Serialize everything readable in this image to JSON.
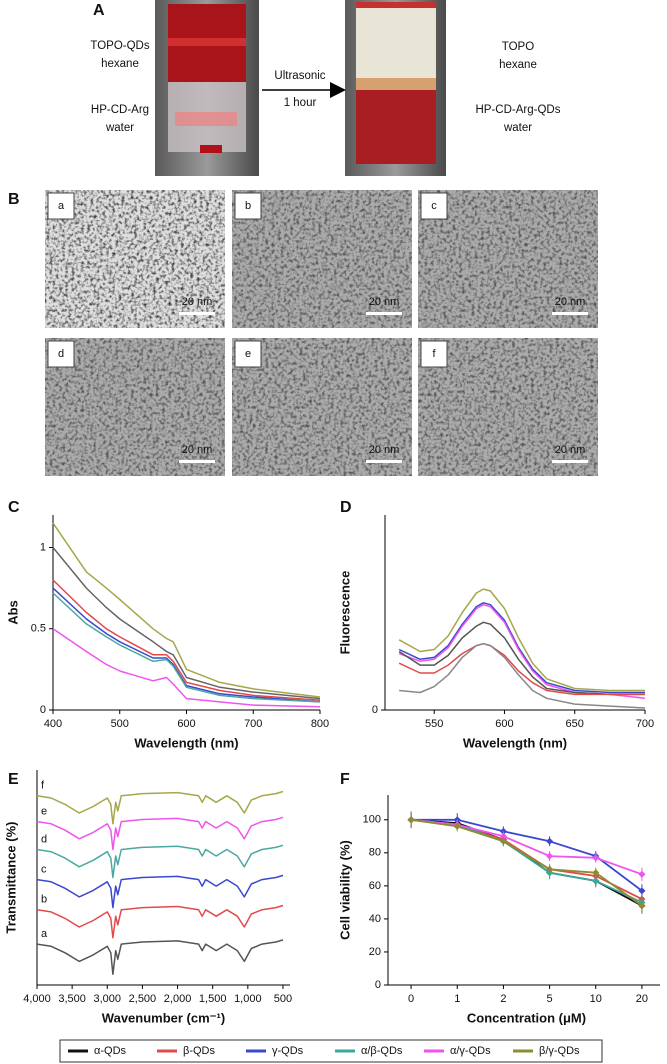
{
  "panel_a": {
    "label": "A",
    "left_labels": [
      [
        "TOPO-QDs",
        "hexane"
      ],
      [
        "HP-CD-Arg",
        "water"
      ]
    ],
    "arrow_labels": [
      "Ultrasonic",
      "1 hour"
    ],
    "right_labels": [
      [
        "TOPO",
        "hexane"
      ],
      [
        "HP-CD-Arg-QDs",
        "water"
      ]
    ]
  },
  "panel_b": {
    "label": "B",
    "images": [
      {
        "label": "a",
        "scale": "20 nm"
      },
      {
        "label": "b",
        "scale": "20 nm"
      },
      {
        "label": "c",
        "scale": "20 nm"
      },
      {
        "label": "d",
        "scale": "20 nm"
      },
      {
        "label": "e",
        "scale": "20 nm"
      },
      {
        "label": "f",
        "scale": "20 nm"
      }
    ]
  },
  "chart_data": [
    {
      "type": "line",
      "panel": "C",
      "xlabel": "Wavelength (nm)",
      "ylabel": "Abs",
      "x": [
        400,
        450,
        480,
        500,
        550,
        570,
        580,
        600,
        650,
        700,
        800
      ],
      "xlim": [
        400,
        800
      ],
      "xticks": [
        400,
        500,
        600,
        700,
        800
      ],
      "ylim": [
        0,
        1.2
      ],
      "yticks": [
        0,
        0.5,
        1
      ],
      "series": [
        {
          "color": "#a6a64a",
          "values": [
            1.15,
            0.85,
            0.75,
            0.68,
            0.5,
            0.44,
            0.42,
            0.25,
            0.17,
            0.13,
            0.08
          ]
        },
        {
          "color": "#666666",
          "values": [
            1.0,
            0.75,
            0.63,
            0.56,
            0.42,
            0.36,
            0.34,
            0.2,
            0.14,
            0.11,
            0.07
          ]
        },
        {
          "color": "#e24a4a",
          "values": [
            0.8,
            0.6,
            0.5,
            0.45,
            0.34,
            0.34,
            0.3,
            0.17,
            0.12,
            0.09,
            0.06
          ]
        },
        {
          "color": "#3a48d0",
          "values": [
            0.75,
            0.56,
            0.47,
            0.42,
            0.32,
            0.32,
            0.28,
            0.15,
            0.1,
            0.08,
            0.05
          ]
        },
        {
          "color": "#4aa8a0",
          "values": [
            0.72,
            0.53,
            0.45,
            0.4,
            0.3,
            0.31,
            0.27,
            0.14,
            0.09,
            0.07,
            0.05
          ]
        },
        {
          "color": "#ee55ee",
          "values": [
            0.5,
            0.36,
            0.28,
            0.24,
            0.18,
            0.2,
            0.16,
            0.07,
            0.05,
            0.03,
            0.02
          ]
        }
      ]
    },
    {
      "type": "line",
      "panel": "D",
      "xlabel": "Wavelength (nm)",
      "ylabel": "Fluorescence",
      "x": [
        525,
        540,
        550,
        560,
        570,
        580,
        585,
        590,
        600,
        610,
        620,
        630,
        650,
        675,
        700
      ],
      "xlim": [
        515,
        700
      ],
      "xticks": [
        550,
        600,
        650,
        700
      ],
      "ylim": [
        0,
        1
      ],
      "yticks": [
        0
      ],
      "series": [
        {
          "color": "#a6a64a",
          "values": [
            0.36,
            0.3,
            0.31,
            0.38,
            0.5,
            0.6,
            0.62,
            0.61,
            0.52,
            0.37,
            0.24,
            0.16,
            0.11,
            0.1,
            0.1
          ]
        },
        {
          "color": "#3a48d0",
          "values": [
            0.31,
            0.26,
            0.27,
            0.33,
            0.44,
            0.53,
            0.55,
            0.54,
            0.46,
            0.32,
            0.21,
            0.14,
            0.1,
            0.09,
            0.09
          ]
        },
        {
          "color": "#ee55ee",
          "values": [
            0.29,
            0.25,
            0.26,
            0.32,
            0.43,
            0.52,
            0.54,
            0.53,
            0.45,
            0.31,
            0.2,
            0.13,
            0.09,
            0.08,
            0.06
          ]
        },
        {
          "color": "#555555",
          "values": [
            0.3,
            0.23,
            0.23,
            0.28,
            0.37,
            0.43,
            0.45,
            0.44,
            0.37,
            0.26,
            0.17,
            0.11,
            0.09,
            0.08,
            0.08
          ]
        },
        {
          "color": "#e24a4a",
          "values": [
            0.24,
            0.19,
            0.19,
            0.23,
            0.29,
            0.33,
            0.34,
            0.33,
            0.28,
            0.2,
            0.14,
            0.1,
            0.08,
            0.08,
            0.08
          ]
        },
        {
          "color": "#888888",
          "values": [
            0.1,
            0.09,
            0.12,
            0.18,
            0.27,
            0.33,
            0.34,
            0.33,
            0.27,
            0.18,
            0.1,
            0.06,
            0.03,
            0.02,
            0.01
          ]
        }
      ]
    },
    {
      "type": "line",
      "panel": "E",
      "xlabel": "Wavenumber (cm⁻¹)",
      "ylabel": "Transmittance (%)",
      "x": [
        4000,
        3800,
        3600,
        3400,
        3200,
        3000,
        2950,
        2920,
        2880,
        2850,
        2800,
        2500,
        2000,
        1700,
        1650,
        1600,
        1450,
        1300,
        1150,
        1050,
        950,
        800,
        600,
        500
      ],
      "xlim": [
        4000,
        400
      ],
      "xticks": [
        {
          "value": 4000,
          "label": "4,000"
        },
        {
          "value": 3500,
          "label": "3,500"
        },
        {
          "value": 3000,
          "label": "3,000"
        },
        {
          "value": 2500,
          "label": "2,500"
        },
        {
          "value": 2000,
          "label": "2,000"
        },
        {
          "value": 1500,
          "label": "1,500"
        },
        {
          "value": 1000,
          "label": "1,000"
        },
        500
      ],
      "ylim": [
        0,
        10
      ],
      "series": [
        {
          "name": "a",
          "color": "#555555",
          "values": [
            1.9,
            1.8,
            1.5,
            1.1,
            1.4,
            1.8,
            1.5,
            0.5,
            1.6,
            1.2,
            1.9,
            2.0,
            2.05,
            1.9,
            1.6,
            1.9,
            1.6,
            1.9,
            1.6,
            1.1,
            1.7,
            1.9,
            2.0,
            2.1
          ]
        },
        {
          "name": "b",
          "color": "#e24a4a",
          "values": [
            3.5,
            3.4,
            3.1,
            2.7,
            3.0,
            3.4,
            3.1,
            2.2,
            3.2,
            2.8,
            3.5,
            3.6,
            3.65,
            3.5,
            3.2,
            3.5,
            3.2,
            3.5,
            3.2,
            2.7,
            3.3,
            3.5,
            3.6,
            3.7
          ]
        },
        {
          "name": "c",
          "color": "#3a48d0",
          "values": [
            4.9,
            4.8,
            4.5,
            4.1,
            4.4,
            4.8,
            4.5,
            3.6,
            4.6,
            4.2,
            4.9,
            5.0,
            5.05,
            4.9,
            4.6,
            4.9,
            4.6,
            4.9,
            4.6,
            4.1,
            4.7,
            4.9,
            5.0,
            5.1
          ]
        },
        {
          "name": "d",
          "color": "#4aa8a0",
          "values": [
            6.3,
            6.2,
            5.9,
            5.5,
            5.8,
            6.2,
            5.9,
            5.0,
            6.0,
            5.6,
            6.3,
            6.4,
            6.45,
            6.3,
            6.0,
            6.3,
            6.0,
            6.3,
            6.0,
            5.5,
            6.1,
            6.3,
            6.4,
            6.5
          ]
        },
        {
          "name": "e",
          "color": "#ee55ee",
          "values": [
            7.6,
            7.5,
            7.2,
            6.8,
            7.1,
            7.5,
            7.2,
            6.3,
            7.3,
            6.9,
            7.6,
            7.7,
            7.75,
            7.6,
            7.3,
            7.6,
            7.3,
            7.6,
            7.3,
            6.8,
            7.4,
            7.6,
            7.7,
            7.8
          ]
        },
        {
          "name": "f",
          "color": "#a6a64a",
          "values": [
            8.8,
            8.7,
            8.4,
            8.0,
            8.3,
            8.7,
            8.4,
            7.5,
            8.5,
            8.1,
            8.8,
            8.9,
            8.95,
            8.8,
            8.5,
            8.8,
            8.5,
            8.8,
            8.5,
            8.0,
            8.6,
            8.8,
            8.9,
            9.0
          ]
        }
      ]
    },
    {
      "type": "line",
      "panel": "F",
      "xlabel": "Concentration (μM)",
      "ylabel": "Cell viability (%)",
      "categories": [
        "0",
        "1",
        "2",
        "5",
        "10",
        "20"
      ],
      "ylim": [
        0,
        115
      ],
      "yticks": [
        0,
        20,
        40,
        60,
        80,
        100
      ],
      "legend": "bottom",
      "series": [
        {
          "name": "α-QDs",
          "color": "#111111",
          "values": [
            100,
            98,
            88,
            68,
            63,
            48
          ],
          "errors": [
            4,
            3,
            2,
            3,
            3,
            4
          ]
        },
        {
          "name": "β-QDs",
          "color": "#e24a4a",
          "values": [
            100,
            97,
            88,
            70,
            66,
            52
          ],
          "errors": [
            4,
            3,
            2,
            3,
            3,
            4
          ]
        },
        {
          "name": "γ-QDs",
          "color": "#3a48d0",
          "values": [
            100,
            100,
            93,
            87,
            78,
            57
          ],
          "errors": [
            5,
            4,
            3,
            3,
            3,
            4
          ]
        },
        {
          "name": "α/β-QDs",
          "color": "#3aa89a",
          "values": [
            100,
            97,
            87,
            68,
            63,
            50
          ],
          "errors": [
            4,
            3,
            3,
            4,
            4,
            4
          ]
        },
        {
          "name": "α/γ-QDs",
          "color": "#ee55ee",
          "values": [
            100,
            97,
            90,
            78,
            77,
            67
          ],
          "errors": [
            4,
            3,
            3,
            3,
            3,
            4
          ]
        },
        {
          "name": "β/γ-QDs",
          "color": "#8c8c30",
          "values": [
            100,
            96,
            87,
            70,
            68,
            48
          ],
          "errors": [
            4,
            3,
            3,
            3,
            3,
            5
          ]
        }
      ]
    }
  ]
}
